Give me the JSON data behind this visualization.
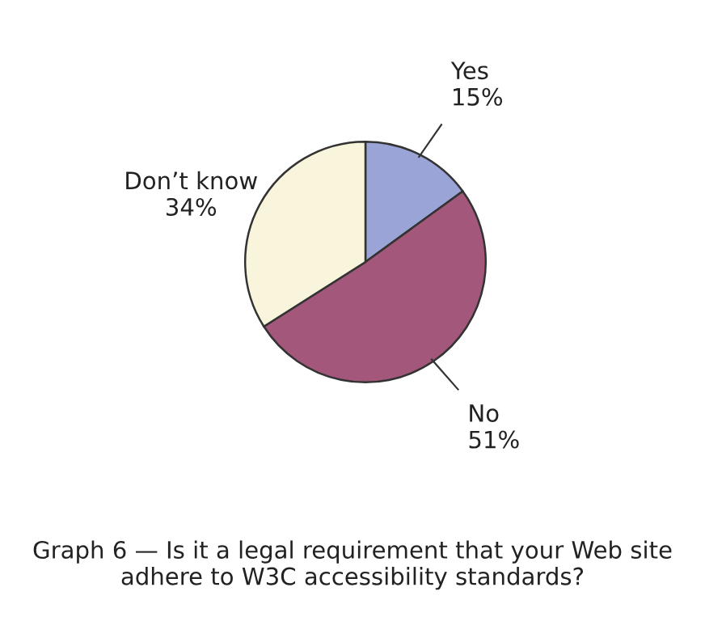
{
  "chart_data": {
    "type": "pie",
    "categories": [
      "Yes",
      "No",
      "Don’t know"
    ],
    "values": [
      15,
      51,
      34
    ],
    "value_labels": [
      "15%",
      "51%",
      "34%"
    ],
    "colors": [
      "#9ba4d6",
      "#a3577a",
      "#f8f5dc"
    ],
    "annotations": [
      "Graph 6 — Is it a legal requirement that your Web site adhere to W3C accessibility standards?"
    ],
    "legend": false
  }
}
